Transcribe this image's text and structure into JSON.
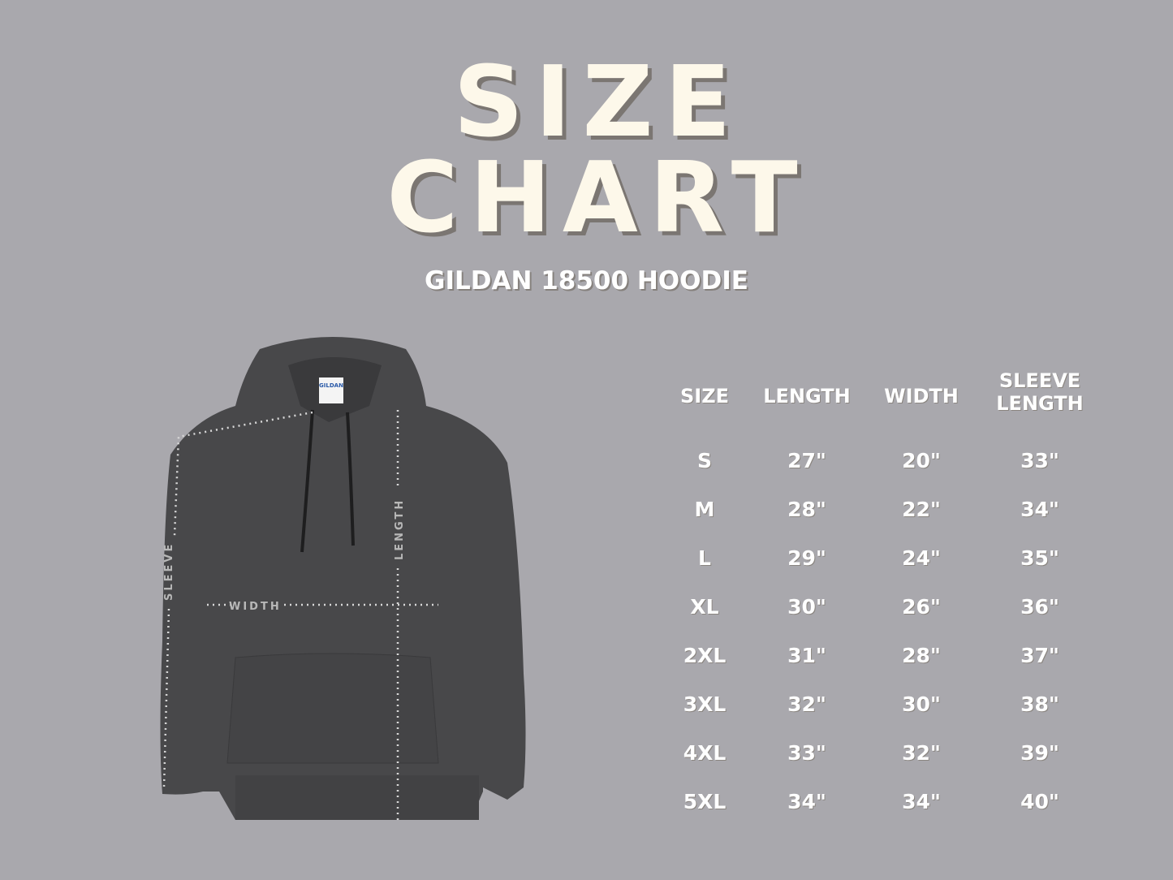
{
  "title_line1": "SIZE",
  "title_line2": "CHART",
  "subtitle": "GILDAN 18500 HOODIE",
  "garment_labels": {
    "sleeve": "SLEEVE",
    "width": "WIDTH",
    "length": "LENGTH",
    "tag": "GILDAN"
  },
  "colors": {
    "background": "#a9a8ad",
    "title": "#fdf8ea",
    "title_shadow": "#7b7672",
    "hoodie": "#48484a"
  },
  "chart_data": {
    "type": "table",
    "columns": [
      "SIZE",
      "LENGTH",
      "WIDTH",
      "SLEEVE LENGTH"
    ],
    "rows": [
      [
        "S",
        "27\"",
        "20\"",
        "33\""
      ],
      [
        "M",
        "28\"",
        "22\"",
        "34\""
      ],
      [
        "L",
        "29\"",
        "24\"",
        "35\""
      ],
      [
        "XL",
        "30\"",
        "26\"",
        "36\""
      ],
      [
        "2XL",
        "31\"",
        "28\"",
        "37\""
      ],
      [
        "3XL",
        "32\"",
        "30\"",
        "38\""
      ],
      [
        "4XL",
        "33\"",
        "32\"",
        "39\""
      ],
      [
        "5XL",
        "34\"",
        "34\"",
        "40\""
      ]
    ]
  }
}
